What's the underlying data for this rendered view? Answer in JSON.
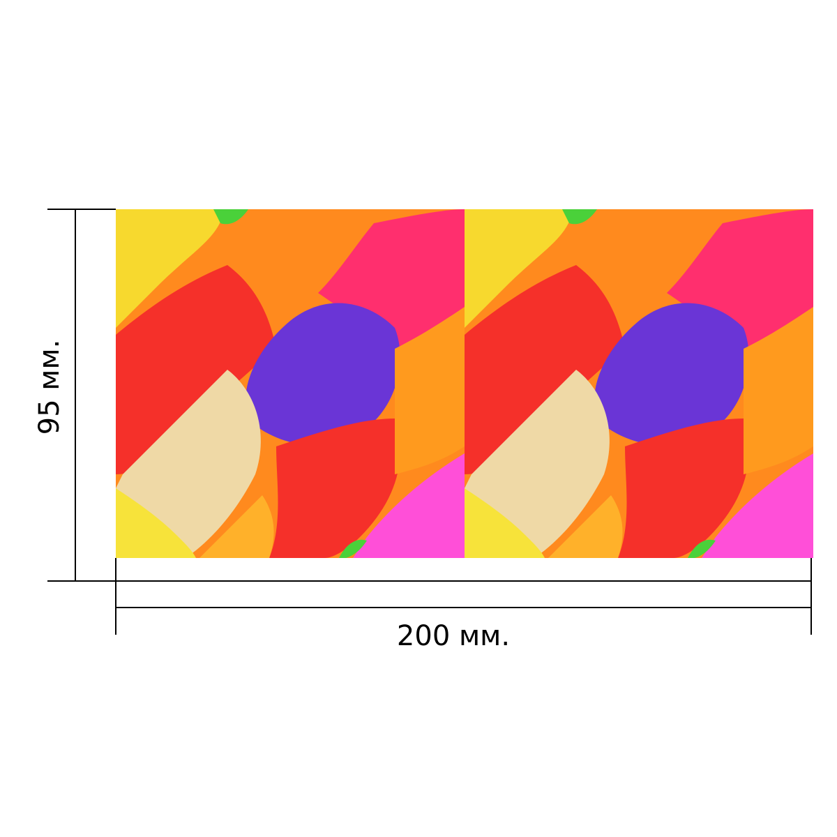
{
  "dimensions": {
    "height_label": "95 мм.",
    "width_label": "200 мм."
  },
  "product": {
    "panel_count": 2,
    "palette": {
      "yellow": "#f7e33a",
      "orange": "#ff8a1e",
      "red": "#f5302a",
      "magenta": "#ff2f9e",
      "purple": "#6a35d6",
      "cream": "#efd9a6",
      "green": "#4ad13a",
      "pink": "#ff4fd8"
    }
  }
}
